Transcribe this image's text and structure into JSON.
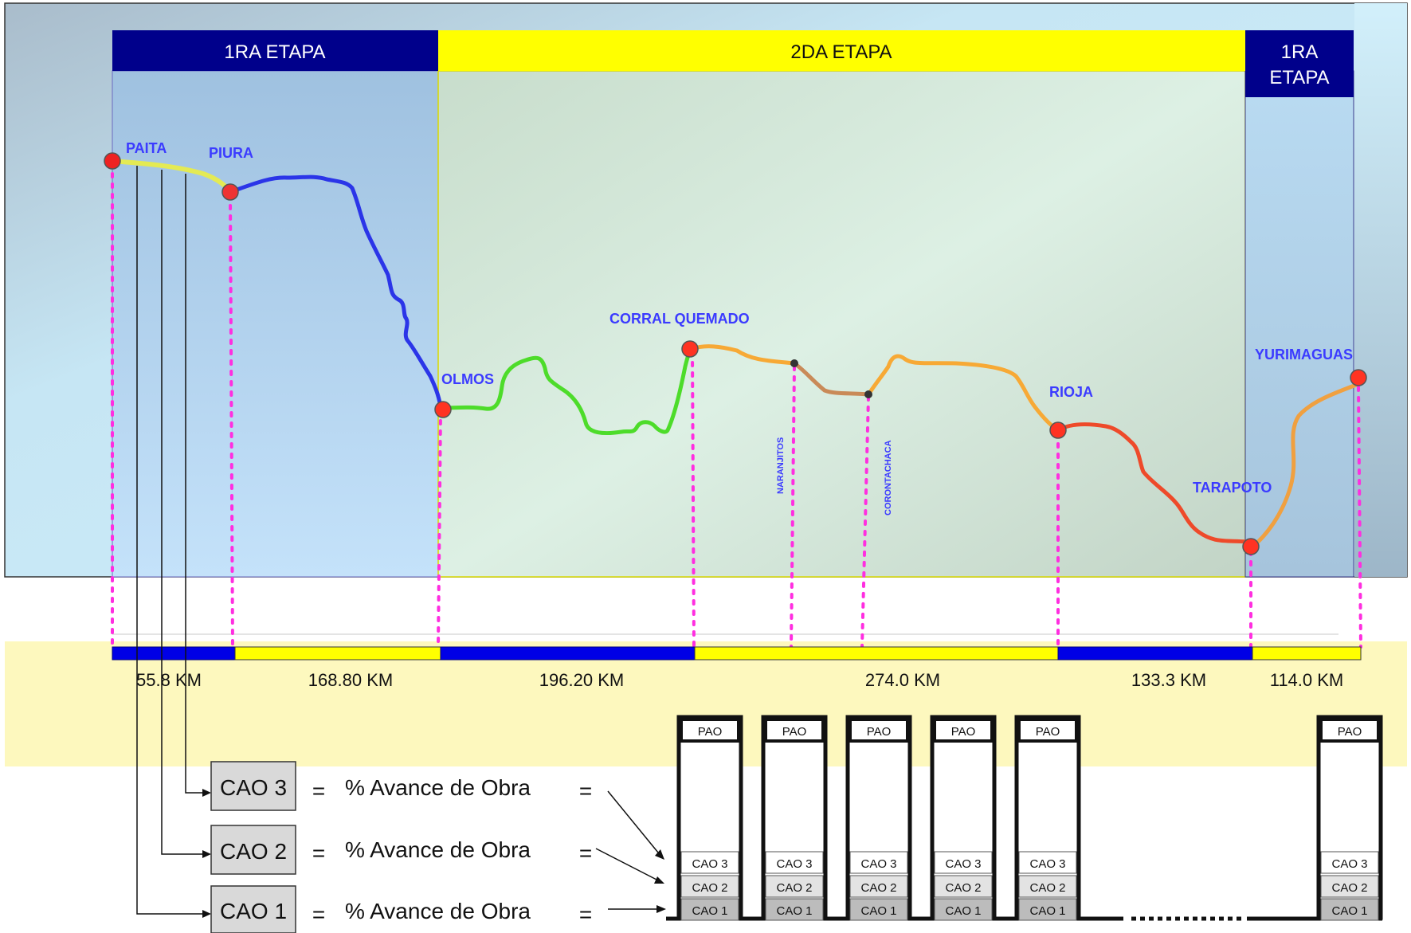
{
  "stages": {
    "left": "1RA ETAPA",
    "middle": "2DA ETAPA",
    "right_line1": "1RA",
    "right_line2": "ETAPA"
  },
  "cities": {
    "paita": "PAITA",
    "piura": "PIURA",
    "olmos": "OLMOS",
    "corral_quemado": "CORRAL QUEMADO",
    "naranjitos": "NARANJITOS",
    "corontachaca": "CORONTACHACA",
    "rioja": "RIOJA",
    "tarapoto": "TARAPOTO",
    "yurimaguas": "YURIMAGUAS"
  },
  "segments": {
    "s1": "55.8 KM",
    "s2": "168.80 KM",
    "s3": "196.20 KM",
    "s4": "274.0 KM",
    "s5": "133.3 KM",
    "s6": "114.0 KM"
  },
  "cao": {
    "cao1": "CAO 1",
    "cao2": "CAO 2",
    "cao3": "CAO 3",
    "pao": "PAO"
  },
  "formula": {
    "equals": "=",
    "text": "% Avance de Obra"
  },
  "colors": {
    "stage1_header": "#00008b",
    "stage2_header": "#ffff00",
    "route_blue": "#2b35e8",
    "route_green": "#4ddc2a",
    "route_orange": "#f7a935",
    "route_red": "#ee4a2a",
    "marker_magenta": "#ff2ee0"
  }
}
